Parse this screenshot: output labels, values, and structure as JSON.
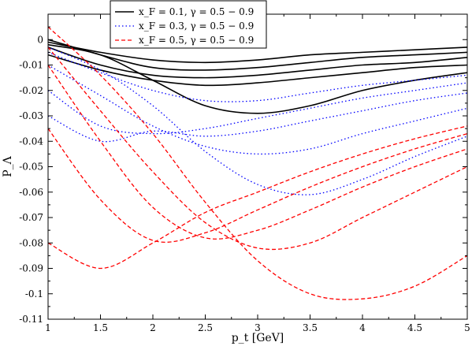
{
  "chart_data": {
    "type": "line",
    "title": "",
    "xlabel": "p_t [GeV]",
    "ylabel": "P_Λ",
    "xlim": [
      1,
      5
    ],
    "ylim": [
      -0.11,
      0.01
    ],
    "grid": false,
    "legend_placement": "top-center",
    "x_ticks": [
      "1",
      "1.5",
      "2",
      "2.5",
      "3",
      "3.5",
      "4",
      "4.5",
      "5"
    ],
    "y_ticks": [
      "0",
      "-0.01",
      "-0.02",
      "-0.03",
      "-0.04",
      "-0.05",
      "-0.06",
      "-0.07",
      "-0.08",
      "-0.09",
      "-0.1",
      "-0.11"
    ],
    "legend": [
      {
        "label": "x_F = 0.1,  γ = 0.5 − 0.9",
        "color": "#000000",
        "style": "solid"
      },
      {
        "label": "x_F = 0.3,  γ = 0.5 − 0.9",
        "color": "#0000ff",
        "style": "dotted"
      },
      {
        "label": "x_F = 0.5,  γ = 0.5 − 0.9",
        "color": "#ff0000",
        "style": "dashed"
      }
    ],
    "series": [
      {
        "group": 0,
        "color": "#000000",
        "style": "solid",
        "x": [
          1,
          1.5,
          2,
          2.5,
          3,
          3.5,
          4,
          4.5,
          5
        ],
        "y": [
          -0.001,
          -0.005,
          -0.008,
          -0.009,
          -0.008,
          -0.006,
          -0.005,
          -0.004,
          -0.003
        ]
      },
      {
        "group": 0,
        "color": "#000000",
        "style": "solid",
        "x": [
          1,
          1.5,
          2,
          2.5,
          3,
          3.5,
          4,
          4.5,
          5
        ],
        "y": [
          0.0,
          -0.006,
          -0.011,
          -0.012,
          -0.011,
          -0.009,
          -0.007,
          -0.006,
          -0.005
        ]
      },
      {
        "group": 0,
        "color": "#000000",
        "style": "solid",
        "x": [
          1,
          1.5,
          2,
          2.5,
          3,
          3.5,
          4,
          4.5,
          5
        ],
        "y": [
          -0.003,
          -0.01,
          -0.014,
          -0.015,
          -0.014,
          -0.012,
          -0.01,
          -0.009,
          -0.007
        ]
      },
      {
        "group": 0,
        "color": "#000000",
        "style": "solid",
        "x": [
          1,
          1.5,
          2,
          2.5,
          3,
          3.5,
          4,
          4.5,
          5
        ],
        "y": [
          -0.006,
          -0.012,
          -0.016,
          -0.018,
          -0.017,
          -0.015,
          -0.013,
          -0.011,
          -0.01
        ]
      },
      {
        "group": 0,
        "color": "#000000",
        "style": "solid",
        "x": [
          1,
          1.5,
          2,
          2.5,
          3,
          3.5,
          4,
          4.5,
          5
        ],
        "y": [
          -0.002,
          -0.006,
          -0.016,
          -0.026,
          -0.029,
          -0.026,
          -0.02,
          -0.016,
          -0.013
        ]
      },
      {
        "group": 1,
        "color": "#0000ff",
        "style": "dotted",
        "x": [
          1,
          1.5,
          2,
          2.5,
          3,
          3.5,
          4,
          4.5,
          5
        ],
        "y": [
          -0.005,
          -0.013,
          -0.02,
          -0.024,
          -0.024,
          -0.021,
          -0.018,
          -0.016,
          -0.014
        ]
      },
      {
        "group": 1,
        "color": "#0000ff",
        "style": "dotted",
        "x": [
          1,
          1.5,
          2,
          2.5,
          3,
          3.5,
          4,
          4.5,
          5
        ],
        "y": [
          -0.02,
          -0.034,
          -0.037,
          -0.035,
          -0.031,
          -0.027,
          -0.023,
          -0.02,
          -0.017
        ]
      },
      {
        "group": 1,
        "color": "#0000ff",
        "style": "dotted",
        "x": [
          1,
          1.5,
          2,
          2.5,
          3,
          3.5,
          4,
          4.5,
          5
        ],
        "y": [
          -0.03,
          -0.04,
          -0.036,
          -0.038,
          -0.036,
          -0.032,
          -0.028,
          -0.024,
          -0.021
        ]
      },
      {
        "group": 1,
        "color": "#0000ff",
        "style": "dotted",
        "x": [
          1,
          1.5,
          2,
          2.5,
          3,
          3.5,
          4,
          4.5,
          5
        ],
        "y": [
          -0.01,
          -0.022,
          -0.034,
          -0.042,
          -0.045,
          -0.043,
          -0.037,
          -0.032,
          -0.027
        ]
      },
      {
        "group": 1,
        "color": "#0000ff",
        "style": "dotted",
        "x": [
          1,
          1.5,
          2,
          2.5,
          3,
          3.5,
          4,
          4.5,
          5
        ],
        "y": [
          -0.003,
          -0.012,
          -0.026,
          -0.044,
          -0.057,
          -0.061,
          -0.055,
          -0.046,
          -0.038
        ]
      },
      {
        "group": 2,
        "color": "#ff0000",
        "style": "dashed",
        "x": [
          1,
          1.5,
          2,
          2.5,
          3,
          3.5,
          4,
          4.5,
          5
        ],
        "y": [
          -0.08,
          -0.09,
          -0.08,
          -0.068,
          -0.06,
          -0.052,
          -0.045,
          -0.039,
          -0.034
        ]
      },
      {
        "group": 2,
        "color": "#ff0000",
        "style": "dashed",
        "x": [
          1,
          1.5,
          2,
          2.5,
          3,
          3.5,
          4,
          4.5,
          5
        ],
        "y": [
          -0.035,
          -0.063,
          -0.079,
          -0.076,
          -0.067,
          -0.058,
          -0.05,
          -0.043,
          -0.037
        ]
      },
      {
        "group": 2,
        "color": "#ff0000",
        "style": "dashed",
        "x": [
          1,
          1.5,
          2,
          2.5,
          3,
          3.5,
          4,
          4.5,
          5
        ],
        "y": [
          -0.01,
          -0.04,
          -0.066,
          -0.078,
          -0.075,
          -0.067,
          -0.058,
          -0.05,
          -0.043
        ]
      },
      {
        "group": 2,
        "color": "#ff0000",
        "style": "dashed",
        "x": [
          1,
          1.5,
          2,
          2.5,
          3,
          3.5,
          4,
          4.5,
          5
        ],
        "y": [
          -0.003,
          -0.028,
          -0.052,
          -0.072,
          -0.082,
          -0.08,
          -0.07,
          -0.06,
          -0.05
        ]
      },
      {
        "group": 2,
        "color": "#ff0000",
        "style": "dashed",
        "x": [
          1,
          1.5,
          2,
          2.5,
          3,
          3.5,
          4,
          4.5,
          5
        ],
        "y": [
          0.005,
          -0.014,
          -0.037,
          -0.064,
          -0.087,
          -0.1,
          -0.102,
          -0.097,
          -0.085
        ]
      }
    ]
  }
}
